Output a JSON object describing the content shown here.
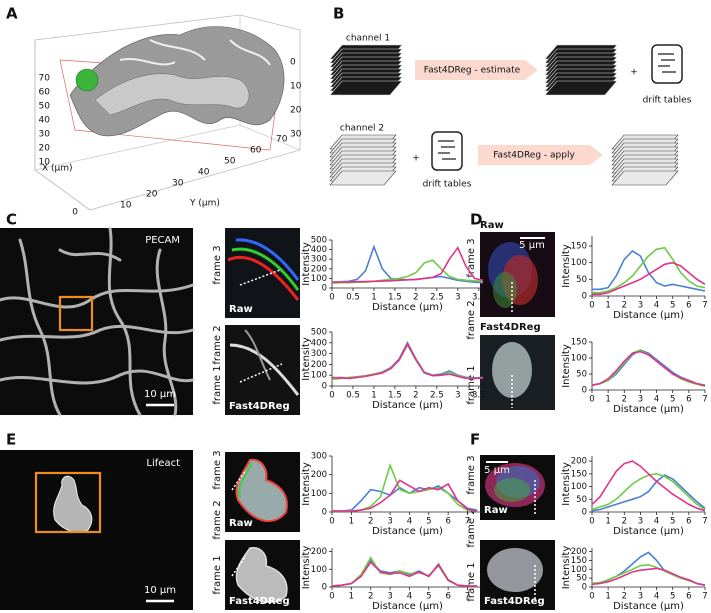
{
  "figure": {
    "panel_letters": [
      "A",
      "B",
      "C",
      "D",
      "E",
      "F"
    ],
    "panel_a": {
      "x_axis_label": "X (μm)",
      "y_axis_label": "Y (μm)",
      "x_ticks": [
        "70",
        "60",
        "50",
        "40",
        "30",
        "20",
        "10",
        "0"
      ],
      "y_ticks": [
        "10",
        "20",
        "30",
        "40",
        "50",
        "60",
        "70"
      ],
      "z_ticks": [
        "0",
        "10",
        "20",
        "30"
      ]
    },
    "panel_b": {
      "channel_1": "channel 1",
      "channel_2": "channel 2",
      "estimate": "Fast4DReg - estimate",
      "apply": "Fast4DReg - apply",
      "drift_tables": [
        "drift tables",
        "drift tables"
      ],
      "plus": [
        "+",
        "+"
      ]
    },
    "panel_c": {
      "stain": "PECAM",
      "scale_bar": "10 μm",
      "frame_labels": [
        "frame 1",
        "frame 2",
        "frame 3"
      ],
      "raw": "Raw",
      "corrected": "Fast4DReg"
    },
    "panel_d": {
      "scale_bar": "5 μm",
      "frame_labels": [
        "frame 1",
        "frame 2",
        "frame 3"
      ],
      "raw": "Raw",
      "corrected": "Fast4DReg"
    },
    "panel_e": {
      "stain": "Lifeact",
      "scale_bar": "10 μm",
      "frame_labels": [
        "frame 1",
        "frame 2",
        "frame 3"
      ],
      "raw": "Raw",
      "corrected": "Fast4DReg"
    },
    "panel_f": {
      "scale_bar": "5 μm",
      "frame_labels": [
        "frame 1",
        "frame 2",
        "frame 3"
      ],
      "raw": "Raw",
      "corrected": "Fast4DReg"
    }
  },
  "chart_data": [
    {
      "type": "line",
      "x_label": "Distance (μm)",
      "y_label": "Intensity",
      "x": [
        0,
        0.2,
        0.4,
        0.6,
        0.8,
        1,
        1.2,
        1.4,
        1.6,
        1.8,
        2,
        2.2,
        2.4,
        2.6,
        2.8,
        3,
        3.2,
        3.4,
        3.6
      ],
      "xlim": [
        0,
        3.6
      ],
      "xticks": [
        0,
        0.5,
        1,
        1.5,
        2,
        2.5,
        3,
        3.5
      ],
      "ylim": [
        0,
        500
      ],
      "yticks": [
        0,
        100,
        200,
        300,
        400,
        500
      ],
      "series": [
        {
          "color": "#4a80d4",
          "values": [
            60,
            65,
            70,
            90,
            180,
            430,
            200,
            100,
            90,
            85,
            90,
            100,
            110,
            120,
            100,
            80,
            70,
            60,
            55
          ]
        },
        {
          "color": "#6ccc44",
          "values": [
            50,
            55,
            55,
            60,
            60,
            70,
            80,
            90,
            100,
            120,
            160,
            260,
            290,
            200,
            120,
            90,
            80,
            75,
            70
          ]
        },
        {
          "color": "#e2338c",
          "values": [
            60,
            62,
            64,
            66,
            68,
            70,
            72,
            75,
            80,
            85,
            90,
            100,
            110,
            150,
            300,
            420,
            220,
            100,
            80
          ]
        }
      ]
    },
    {
      "type": "line",
      "x_label": "Distance (μm)",
      "y_label": "Intensity",
      "x": [
        0,
        0.2,
        0.4,
        0.6,
        0.8,
        1,
        1.2,
        1.4,
        1.6,
        1.8,
        2,
        2.2,
        2.4,
        2.6,
        2.8,
        3,
        3.2,
        3.4,
        3.6
      ],
      "xlim": [
        0,
        3.6
      ],
      "xticks": [
        0,
        0.5,
        1,
        1.5,
        2,
        2.5,
        3,
        3.5
      ],
      "ylim": [
        0,
        500
      ],
      "yticks": [
        0,
        100,
        200,
        300,
        400,
        500
      ],
      "series": [
        {
          "color": "#4a80d4",
          "values": [
            70,
            80,
            75,
            85,
            95,
            110,
            130,
            170,
            250,
            400,
            250,
            130,
            100,
            110,
            140,
            100,
            80,
            75,
            80
          ]
        },
        {
          "color": "#6ccc44",
          "values": [
            60,
            70,
            80,
            85,
            95,
            110,
            125,
            165,
            240,
            380,
            240,
            125,
            95,
            100,
            130,
            95,
            75,
            70,
            75
          ]
        },
        {
          "color": "#e2338c",
          "values": [
            80,
            75,
            70,
            80,
            90,
            105,
            120,
            160,
            240,
            390,
            245,
            120,
            95,
            100,
            110,
            90,
            70,
            70,
            75
          ]
        }
      ]
    },
    {
      "type": "line",
      "x_label": "Distance (μm)",
      "y_label": "Intensity",
      "x": [
        0,
        0.5,
        1,
        1.5,
        2,
        2.5,
        3,
        3.5,
        4,
        4.5,
        5,
        5.5,
        6,
        6.5,
        7
      ],
      "xlim": [
        0,
        7
      ],
      "xticks": [
        0,
        1,
        2,
        3,
        4,
        5,
        6,
        7
      ],
      "ylim": [
        0,
        180
      ],
      "yticks": [
        0,
        50,
        100,
        150
      ],
      "series": [
        {
          "color": "#4a80d4",
          "values": [
            20,
            20,
            25,
            60,
            110,
            135,
            120,
            70,
            40,
            30,
            35,
            30,
            25,
            20,
            15
          ]
        },
        {
          "color": "#6ccc44",
          "values": [
            10,
            10,
            15,
            25,
            40,
            60,
            90,
            120,
            140,
            145,
            110,
            70,
            45,
            30,
            25
          ]
        },
        {
          "color": "#e2338c",
          "values": [
            5,
            5,
            10,
            20,
            30,
            40,
            50,
            65,
            80,
            95,
            100,
            90,
            70,
            50,
            35
          ]
        }
      ]
    },
    {
      "type": "line",
      "x_label": "Distance (μm)",
      "y_label": "Intensity",
      "x": [
        0,
        0.5,
        1,
        1.5,
        2,
        2.5,
        3,
        3.5,
        4,
        4.5,
        5,
        5.5,
        6,
        6.5,
        7
      ],
      "xlim": [
        0,
        7
      ],
      "xticks": [
        0,
        1,
        2,
        3,
        4,
        5,
        6,
        7
      ],
      "ylim": [
        0,
        150
      ],
      "yticks": [
        0,
        50,
        100,
        150
      ],
      "series": [
        {
          "color": "#4a80d4",
          "values": [
            15,
            20,
            30,
            50,
            80,
            110,
            125,
            115,
            95,
            75,
            55,
            40,
            30,
            20,
            15
          ]
        },
        {
          "color": "#6ccc44",
          "values": [
            15,
            20,
            30,
            55,
            85,
            115,
            125,
            110,
            90,
            70,
            50,
            35,
            25,
            18,
            12
          ]
        },
        {
          "color": "#e2338c",
          "values": [
            15,
            20,
            35,
            60,
            90,
            115,
            120,
            110,
            90,
            70,
            50,
            38,
            28,
            20,
            14
          ]
        }
      ]
    },
    {
      "type": "line",
      "x_label": "Distance (μm)",
      "y_label": "Intensity",
      "x": [
        0,
        0.5,
        1,
        1.5,
        2,
        2.5,
        3,
        3.5,
        4,
        4.5,
        5,
        5.5,
        6,
        6.5,
        7,
        7.5
      ],
      "xlim": [
        0,
        7.8
      ],
      "xticks": [
        0,
        1,
        2,
        3,
        4,
        5,
        6,
        7
      ],
      "ylim": [
        0,
        300
      ],
      "yticks": [
        0,
        100,
        200,
        300
      ],
      "series": [
        {
          "color": "#4a80d4",
          "values": [
            5,
            5,
            10,
            60,
            120,
            110,
            90,
            130,
            100,
            130,
            120,
            140,
            100,
            60,
            20,
            10
          ]
        },
        {
          "color": "#6ccc44",
          "values": [
            5,
            5,
            5,
            10,
            30,
            80,
            250,
            120,
            100,
            110,
            120,
            130,
            100,
            40,
            10,
            5
          ]
        },
        {
          "color": "#e2338c",
          "values": [
            5,
            5,
            5,
            10,
            20,
            50,
            90,
            170,
            140,
            110,
            130,
            120,
            150,
            60,
            15,
            5
          ]
        }
      ]
    },
    {
      "type": "line",
      "x_label": "Distance (μm)",
      "y_label": "Intensity",
      "x": [
        0,
        0.5,
        1,
        1.5,
        2,
        2.5,
        3,
        3.5,
        4,
        4.5,
        5,
        5.5,
        6,
        6.5,
        7,
        7.5
      ],
      "xlim": [
        0,
        7.8
      ],
      "xticks": [
        0,
        1,
        2,
        3,
        4,
        5,
        6,
        7
      ],
      "ylim": [
        0,
        220
      ],
      "yticks": [
        0,
        100,
        200
      ],
      "series": [
        {
          "color": "#4a80d4",
          "values": [
            5,
            10,
            20,
            60,
            150,
            90,
            80,
            90,
            70,
            90,
            60,
            130,
            40,
            10,
            5,
            5
          ]
        },
        {
          "color": "#6ccc44",
          "values": [
            5,
            10,
            20,
            70,
            165,
            80,
            70,
            90,
            75,
            80,
            65,
            120,
            35,
            10,
            5,
            5
          ]
        },
        {
          "color": "#e2338c",
          "values": [
            5,
            10,
            20,
            60,
            140,
            85,
            75,
            80,
            60,
            85,
            60,
            125,
            40,
            10,
            5,
            5
          ]
        }
      ]
    },
    {
      "type": "line",
      "x_label": "Distance (μm)",
      "y_label": "Intensity",
      "x": [
        0,
        0.5,
        1,
        1.5,
        2,
        2.5,
        3,
        3.5,
        4,
        4.5,
        5,
        5.5,
        6,
        6.5,
        7
      ],
      "xlim": [
        0,
        7
      ],
      "xticks": [
        0,
        1,
        2,
        3,
        4,
        5,
        6,
        7
      ],
      "ylim": [
        0,
        220
      ],
      "yticks": [
        0,
        50,
        100,
        150,
        200
      ],
      "series": [
        {
          "color": "#4a80d4",
          "values": [
            5,
            10,
            20,
            30,
            40,
            50,
            60,
            80,
            120,
            145,
            130,
            100,
            70,
            40,
            15
          ]
        },
        {
          "color": "#6ccc44",
          "values": [
            10,
            20,
            30,
            50,
            80,
            110,
            130,
            145,
            150,
            140,
            120,
            90,
            60,
            30,
            10
          ]
        },
        {
          "color": "#e2338c",
          "values": [
            30,
            60,
            110,
            160,
            190,
            200,
            180,
            150,
            120,
            95,
            70,
            50,
            30,
            15,
            5
          ]
        }
      ]
    },
    {
      "type": "line",
      "x_label": "Distance (μm)",
      "y_label": "Intensity",
      "x": [
        0,
        0.5,
        1,
        1.5,
        2,
        2.5,
        3,
        3.5,
        4,
        4.5,
        5,
        5.5,
        6,
        6.5,
        7
      ],
      "xlim": [
        0,
        7
      ],
      "xticks": [
        0,
        1,
        2,
        3,
        4,
        5,
        6,
        7
      ],
      "ylim": [
        0,
        220
      ],
      "yticks": [
        0,
        50,
        100,
        150,
        200
      ],
      "series": [
        {
          "color": "#4a80d4",
          "values": [
            20,
            25,
            40,
            60,
            90,
            130,
            170,
            195,
            150,
            90,
            70,
            50,
            40,
            20,
            10
          ]
        },
        {
          "color": "#6ccc44",
          "values": [
            20,
            25,
            40,
            60,
            80,
            100,
            120,
            125,
            110,
            90,
            70,
            50,
            35,
            20,
            10
          ]
        },
        {
          "color": "#e2338c",
          "values": [
            15,
            20,
            30,
            45,
            65,
            85,
            95,
            100,
            105,
            95,
            75,
            55,
            40,
            20,
            10
          ]
        }
      ]
    }
  ]
}
